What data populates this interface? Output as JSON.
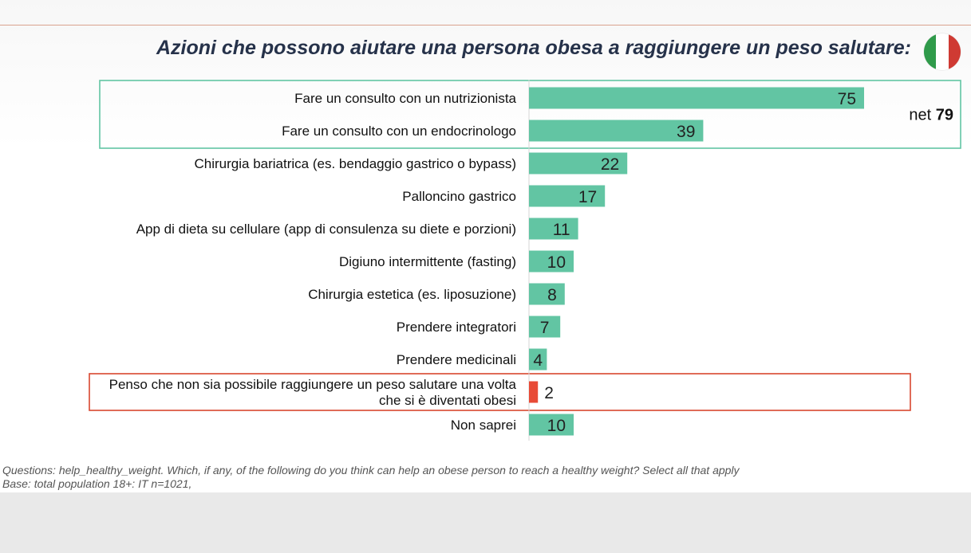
{
  "title": "Azioni che possono aiutare una persona obesa a raggiungere un peso salutare:",
  "colors": {
    "bar": "#62c5a3",
    "highlight_bar": "#e84a36",
    "green_box": "#62c5a3",
    "red_box": "#d9472f",
    "flag": [
      "#2f9a4a",
      "#ffffff",
      "#cf3a33"
    ]
  },
  "flag_icon": "italy-flag-icon",
  "net": {
    "prefix": "net",
    "value": "79"
  },
  "chart_data": {
    "type": "bar",
    "orientation": "horizontal",
    "categories": [
      "Fare un consulto con un nutrizionista",
      "Fare un consulto con un endocrinologo",
      "Chirurgia bariatrica (es. bendaggio gastrico o bypass)",
      "Palloncino gastrico",
      "App di dieta su cellulare (app di consulenza su diete e porzioni)",
      "Digiuno intermittente (fasting)",
      "Chirurgia estetica (es. liposuzione)",
      "Prendere integratori",
      "Prendere medicinali",
      "Penso che non sia possibile raggiungere un peso salutare una volta\nche si è diventati obesi",
      "Non saprei"
    ],
    "values": [
      75,
      39,
      22,
      17,
      11,
      10,
      8,
      7,
      4,
      2,
      10
    ],
    "highlighted_index": 9,
    "net_group": [
      0,
      1
    ],
    "xlim": [
      0,
      100
    ],
    "grid": false
  },
  "notes": {
    "question": "Questions: help_healthy_weight. Which, if any, of the following do you think can help an obese person to reach a healthy weight? Select all that apply",
    "base": "Base: total population 18+: IT n=1021,"
  }
}
